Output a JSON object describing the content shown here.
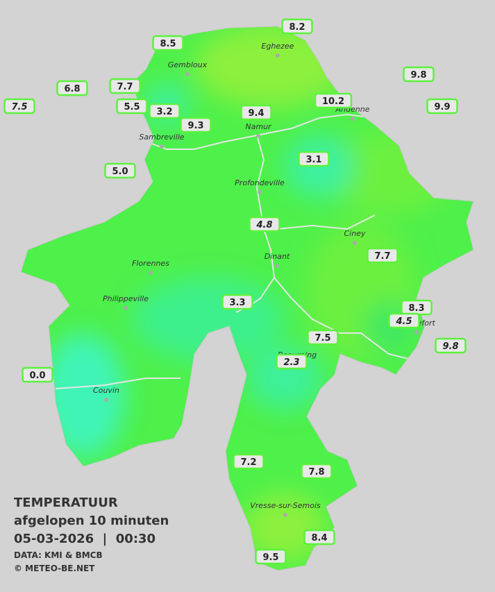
{
  "legend": {
    "title": "TEMPERATUUR",
    "subtitle": "afgelopen 10 minuten",
    "datetime": "05-03-2026  |  00:30",
    "source": "DATA: KMI & BMCB",
    "credit": "© METEO-BE.NET"
  },
  "cities": [
    "Eghezee",
    "Gembloux",
    "Andenne",
    "Namur",
    "Sambreville",
    "Profondeville",
    "Ciney",
    "Dinant",
    "Florennes",
    "Philippeville",
    "Rochefort",
    "Beauraing",
    "Couvin",
    "Vresse-sur-Semois"
  ],
  "stations": [
    {
      "value": "8.2"
    },
    {
      "value": "8.5"
    },
    {
      "value": "9.8"
    },
    {
      "value": "6.8"
    },
    {
      "value": "7.7"
    },
    {
      "value": "7.5",
      "italic": true
    },
    {
      "value": "5.5"
    },
    {
      "value": "3.2"
    },
    {
      "value": "9.3"
    },
    {
      "value": "9.4"
    },
    {
      "value": "10.2"
    },
    {
      "value": "9.9"
    },
    {
      "value": "3.1"
    },
    {
      "value": "5.0"
    },
    {
      "value": "4.8",
      "italic": true
    },
    {
      "value": "7.7"
    },
    {
      "value": "3.3"
    },
    {
      "value": "8.3"
    },
    {
      "value": "4.5",
      "italic": true
    },
    {
      "value": "7.5"
    },
    {
      "value": "9.8",
      "italic": true
    },
    {
      "value": "2.3",
      "italic": true
    },
    {
      "value": "0.0"
    },
    {
      "value": "7.2"
    },
    {
      "value": "7.8"
    },
    {
      "value": "8.4"
    },
    {
      "value": "9.5"
    }
  ]
}
